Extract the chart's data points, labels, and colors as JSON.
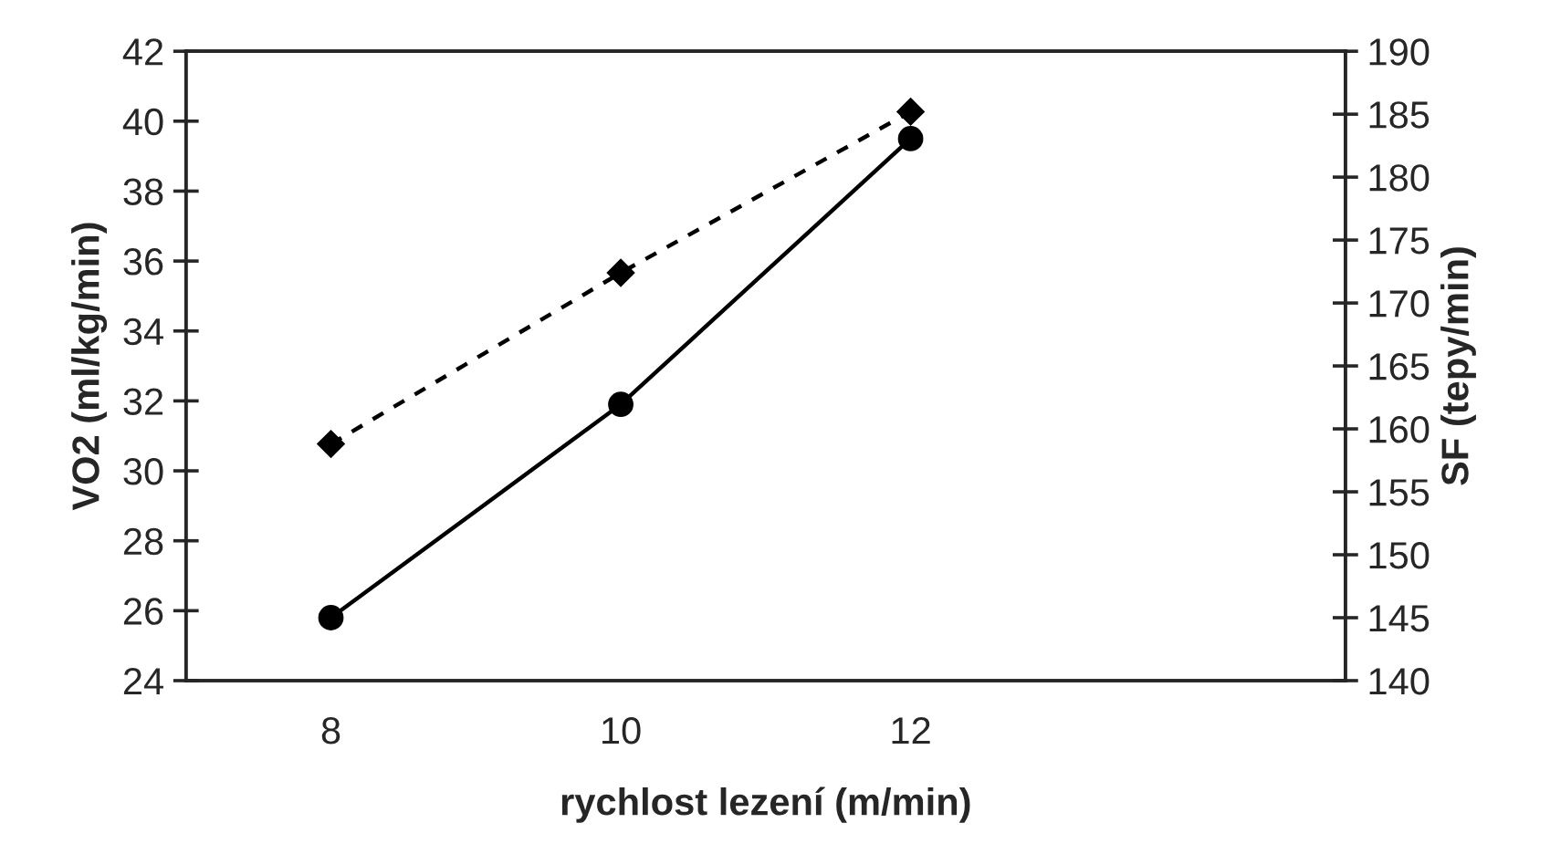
{
  "chart_data": {
    "type": "line",
    "xlabel": "rychlost lezení (m/min)",
    "ylabel": "VO2 (ml/kg/min)",
    "y2label": "SF (tepy/min)",
    "categories": [
      "8",
      "10",
      "12",
      null
    ],
    "series": [
      {
        "color": "#000000",
        "values": [
          25.8,
          31.9,
          39.5,
          null
        ],
        "marker": "circle",
        "line_style": "solid"
      },
      {
        "color": "#000000",
        "values": [
          158.8,
          172.4,
          185.2,
          null
        ],
        "marker": "diamond",
        "line_style": "dashed",
        "axis": "y2"
      }
    ],
    "ylim": [
      24,
      42
    ],
    "yticks": [
      24,
      26,
      28,
      30,
      32,
      34,
      36,
      38,
      40,
      42
    ],
    "y2lim": [
      140,
      190
    ],
    "y2ticks": [
      140,
      145,
      150,
      155,
      160,
      165,
      170,
      175,
      180,
      185,
      190
    ],
    "grid": false
  }
}
